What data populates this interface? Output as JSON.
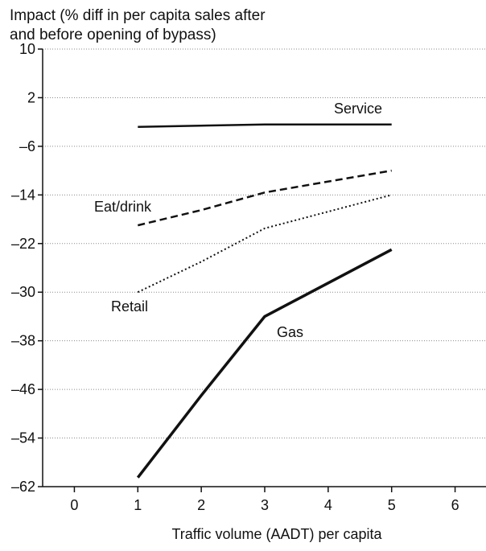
{
  "chart_data": {
    "type": "line",
    "ylabel_lines": [
      "Impact (% diff in per capita sales after",
      "and before opening of bypass)"
    ],
    "xlabel": "Traffic volume (AADT) per capita",
    "xlim": [
      -0.5,
      6.5
    ],
    "ylim": [
      -62,
      10
    ],
    "x_ticks": [
      0,
      1,
      2,
      3,
      4,
      5,
      6
    ],
    "y_ticks": [
      10,
      2,
      -6,
      -14,
      -22,
      -30,
      -38,
      -46,
      -54,
      -62
    ],
    "y_tick_labels": [
      "10",
      "2",
      "–6",
      "–14",
      "–22",
      "–30",
      "–38",
      "–46",
      "–54",
      "–62"
    ],
    "grid": "horizontal dotted",
    "series": [
      {
        "name": "Service",
        "style": "solid",
        "x": [
          1,
          3,
          5
        ],
        "y": [
          -2.8,
          -2.4,
          -2.4
        ]
      },
      {
        "name": "Eat/drink",
        "style": "dashed",
        "x": [
          1,
          2,
          3,
          5
        ],
        "y": [
          -19,
          -16.5,
          -13.6,
          -10
        ]
      },
      {
        "name": "Retail",
        "style": "dotted",
        "x": [
          1,
          2,
          3,
          5
        ],
        "y": [
          -30,
          -25,
          -19.5,
          -14
        ]
      },
      {
        "name": "Gas",
        "style": "thick",
        "x": [
          1,
          2,
          3,
          5
        ],
        "y": [
          -60.5,
          -47,
          -34,
          -23
        ]
      }
    ]
  }
}
